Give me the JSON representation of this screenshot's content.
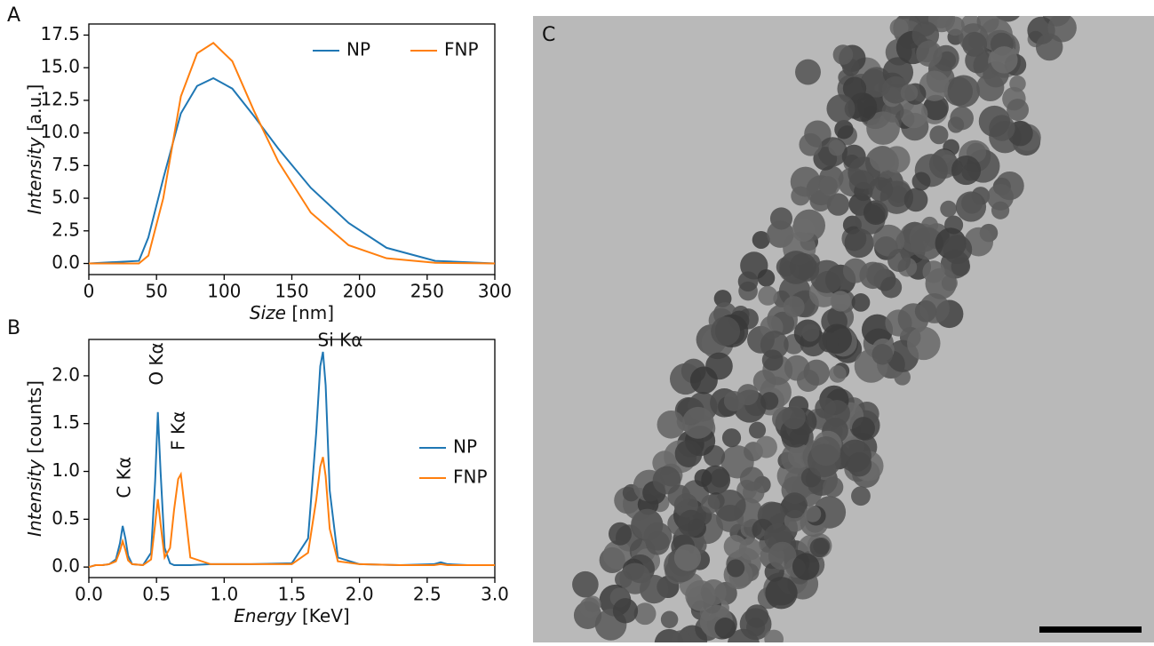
{
  "chart_data": [
    {
      "type": "line",
      "panel_label": "A",
      "xlabel": [
        "Size",
        "[nm]"
      ],
      "ylabel": [
        "Intensity",
        "[a.u.]"
      ],
      "x": [
        0,
        37,
        44,
        55,
        68,
        80,
        92,
        106,
        122,
        140,
        164,
        192,
        220,
        256,
        300
      ],
      "series": [
        {
          "name": "NP",
          "color": "#1f77b4",
          "values": [
            0,
            0.2,
            2.0,
            6.5,
            11.5,
            13.6,
            14.2,
            13.4,
            11.3,
            8.8,
            5.8,
            3.1,
            1.2,
            0.2,
            0
          ]
        },
        {
          "name": "FNP",
          "color": "#ff7f0e",
          "values": [
            0,
            0,
            0.6,
            5.0,
            12.8,
            16.1,
            16.9,
            15.5,
            11.7,
            7.8,
            3.9,
            1.4,
            0.4,
            0.05,
            0
          ]
        }
      ],
      "xlim": [
        0,
        300
      ],
      "ylim": [
        -0.85,
        18.35
      ],
      "xticks": [
        0,
        50,
        100,
        150,
        200,
        250,
        300
      ],
      "yticks": [
        {
          "value": 0,
          "label": "0.0"
        },
        2.5,
        {
          "value": 5,
          "label": "5.0"
        },
        7.5,
        {
          "value": 10,
          "label": "10.0"
        },
        12.5,
        {
          "value": 15,
          "label": "15.0"
        },
        17.5
      ],
      "legend": "upper right"
    },
    {
      "type": "line",
      "panel_label": "B",
      "xlabel": [
        "Energy",
        "[KeV]"
      ],
      "ylabel": [
        "Intensity",
        "[counts]"
      ],
      "x": [
        0.0,
        0.05,
        0.1,
        0.15,
        0.2,
        0.23,
        0.25,
        0.27,
        0.29,
        0.32,
        0.4,
        0.46,
        0.49,
        0.51,
        0.53,
        0.56,
        0.6,
        0.63,
        0.66,
        0.68,
        0.71,
        0.75,
        0.9,
        1.2,
        1.5,
        1.62,
        1.68,
        1.71,
        1.73,
        1.75,
        1.78,
        1.84,
        2.0,
        2.3,
        2.55,
        2.6,
        2.65,
        2.8,
        3.0
      ],
      "series": [
        {
          "name": "NP",
          "color": "#1f77b4",
          "values": [
            0.0,
            0.02,
            0.02,
            0.03,
            0.08,
            0.25,
            0.43,
            0.3,
            0.12,
            0.03,
            0.02,
            0.15,
            0.9,
            1.62,
            1.0,
            0.2,
            0.04,
            0.02,
            0.02,
            0.02,
            0.02,
            0.02,
            0.03,
            0.03,
            0.04,
            0.3,
            1.4,
            2.1,
            2.25,
            1.9,
            0.8,
            0.1,
            0.03,
            0.02,
            0.03,
            0.05,
            0.03,
            0.02,
            0.02
          ]
        },
        {
          "name": "FNP",
          "color": "#ff7f0e",
          "values": [
            0.0,
            0.02,
            0.02,
            0.03,
            0.06,
            0.17,
            0.27,
            0.18,
            0.07,
            0.03,
            0.02,
            0.08,
            0.45,
            0.71,
            0.45,
            0.1,
            0.2,
            0.6,
            0.92,
            0.97,
            0.6,
            0.1,
            0.03,
            0.03,
            0.03,
            0.15,
            0.7,
            1.05,
            1.15,
            0.95,
            0.4,
            0.06,
            0.03,
            0.02,
            0.02,
            0.03,
            0.02,
            0.02,
            0.02
          ]
        }
      ],
      "annotations": [
        "C Kα",
        "O Kα",
        "F Kα",
        "Si Kα"
      ],
      "xlim": [
        0,
        3
      ],
      "ylim": [
        -0.11,
        2.38
      ],
      "xticks": [
        {
          "value": 0,
          "label": "0.0"
        },
        0.5,
        {
          "value": 1,
          "label": "1.0"
        },
        1.5,
        {
          "value": 2,
          "label": "2.0"
        },
        2.5,
        {
          "value": 3,
          "label": "3.0"
        }
      ],
      "yticks": [
        {
          "value": 0,
          "label": "0.0"
        },
        0.5,
        {
          "value": 1,
          "label": "1.0"
        },
        1.5,
        {
          "value": 2,
          "label": "2.0"
        }
      ],
      "legend": "center right"
    }
  ],
  "image_panel": {
    "label": "C"
  }
}
